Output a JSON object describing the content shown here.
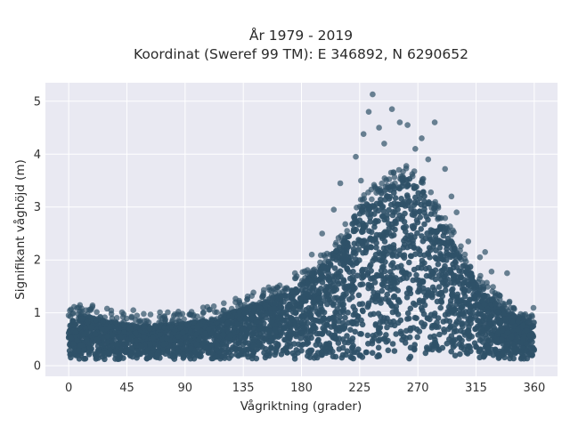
{
  "chart_data": {
    "type": "scatter",
    "title_line1": "År 1979 - 2019",
    "title_line2": "Koordinat (Sweref 99 TM): E 346892, N 6290652",
    "xlabel": "Vågriktning (grader)",
    "ylabel": "Signifikant våghöjd (m)",
    "xlim": [
      -18,
      378
    ],
    "ylim": [
      -0.2,
      5.35
    ],
    "xticks": [
      0,
      45,
      90,
      135,
      180,
      225,
      270,
      315,
      360
    ],
    "yticks": [
      0,
      1,
      2,
      3,
      4,
      5
    ],
    "grid": true,
    "marker_color": "#2f5168",
    "plot_background": "#e9e9f2",
    "envelope": {
      "direction": [
        0,
        10,
        20,
        30,
        45,
        60,
        75,
        90,
        105,
        120,
        135,
        150,
        165,
        180,
        195,
        210,
        225,
        240,
        255,
        262,
        270,
        280,
        290,
        300,
        315,
        330,
        345,
        360
      ],
      "upper_hs": [
        0.85,
        0.95,
        0.9,
        0.85,
        0.78,
        0.75,
        0.78,
        0.8,
        0.85,
        0.95,
        1.1,
        1.2,
        1.35,
        1.55,
        1.85,
        2.3,
        2.95,
        3.3,
        3.5,
        3.55,
        3.45,
        3.1,
        2.6,
        2.2,
        1.6,
        1.2,
        0.95,
        0.85
      ]
    },
    "outliers": [
      [
        235,
        5.13
      ],
      [
        250,
        4.85
      ],
      [
        256,
        4.6
      ],
      [
        232,
        4.8
      ],
      [
        262,
        4.55
      ],
      [
        283,
        4.6
      ],
      [
        240,
        4.5
      ],
      [
        228,
        4.38
      ],
      [
        273,
        4.3
      ],
      [
        244,
        4.2
      ],
      [
        268,
        4.1
      ],
      [
        278,
        3.9
      ],
      [
        222,
        3.95
      ],
      [
        226,
        3.5
      ],
      [
        291,
        3.72
      ],
      [
        296,
        3.2
      ],
      [
        210,
        3.45
      ],
      [
        205,
        2.95
      ],
      [
        300,
        2.9
      ],
      [
        309,
        2.35
      ],
      [
        318,
        2.05
      ],
      [
        322,
        2.15
      ],
      [
        327,
        1.78
      ],
      [
        339,
        1.75
      ],
      [
        332,
        1.35
      ],
      [
        196,
        2.5
      ],
      [
        188,
        2.1
      ],
      [
        175,
        1.75
      ],
      [
        160,
        1.45
      ],
      [
        150,
        1.3
      ],
      [
        138,
        1.25
      ],
      [
        132,
        1.2
      ],
      [
        120,
        1.05
      ],
      [
        104,
        1.1
      ],
      [
        95,
        1.02
      ],
      [
        88,
        0.98
      ],
      [
        74,
        0.92
      ],
      [
        58,
        0.98
      ],
      [
        50,
        1.05
      ],
      [
        42,
        0.92
      ],
      [
        33,
        0.98
      ],
      [
        16,
        1.06
      ],
      [
        10,
        1.03
      ],
      [
        3,
        0.98
      ],
      [
        0,
        0.95
      ]
    ]
  }
}
